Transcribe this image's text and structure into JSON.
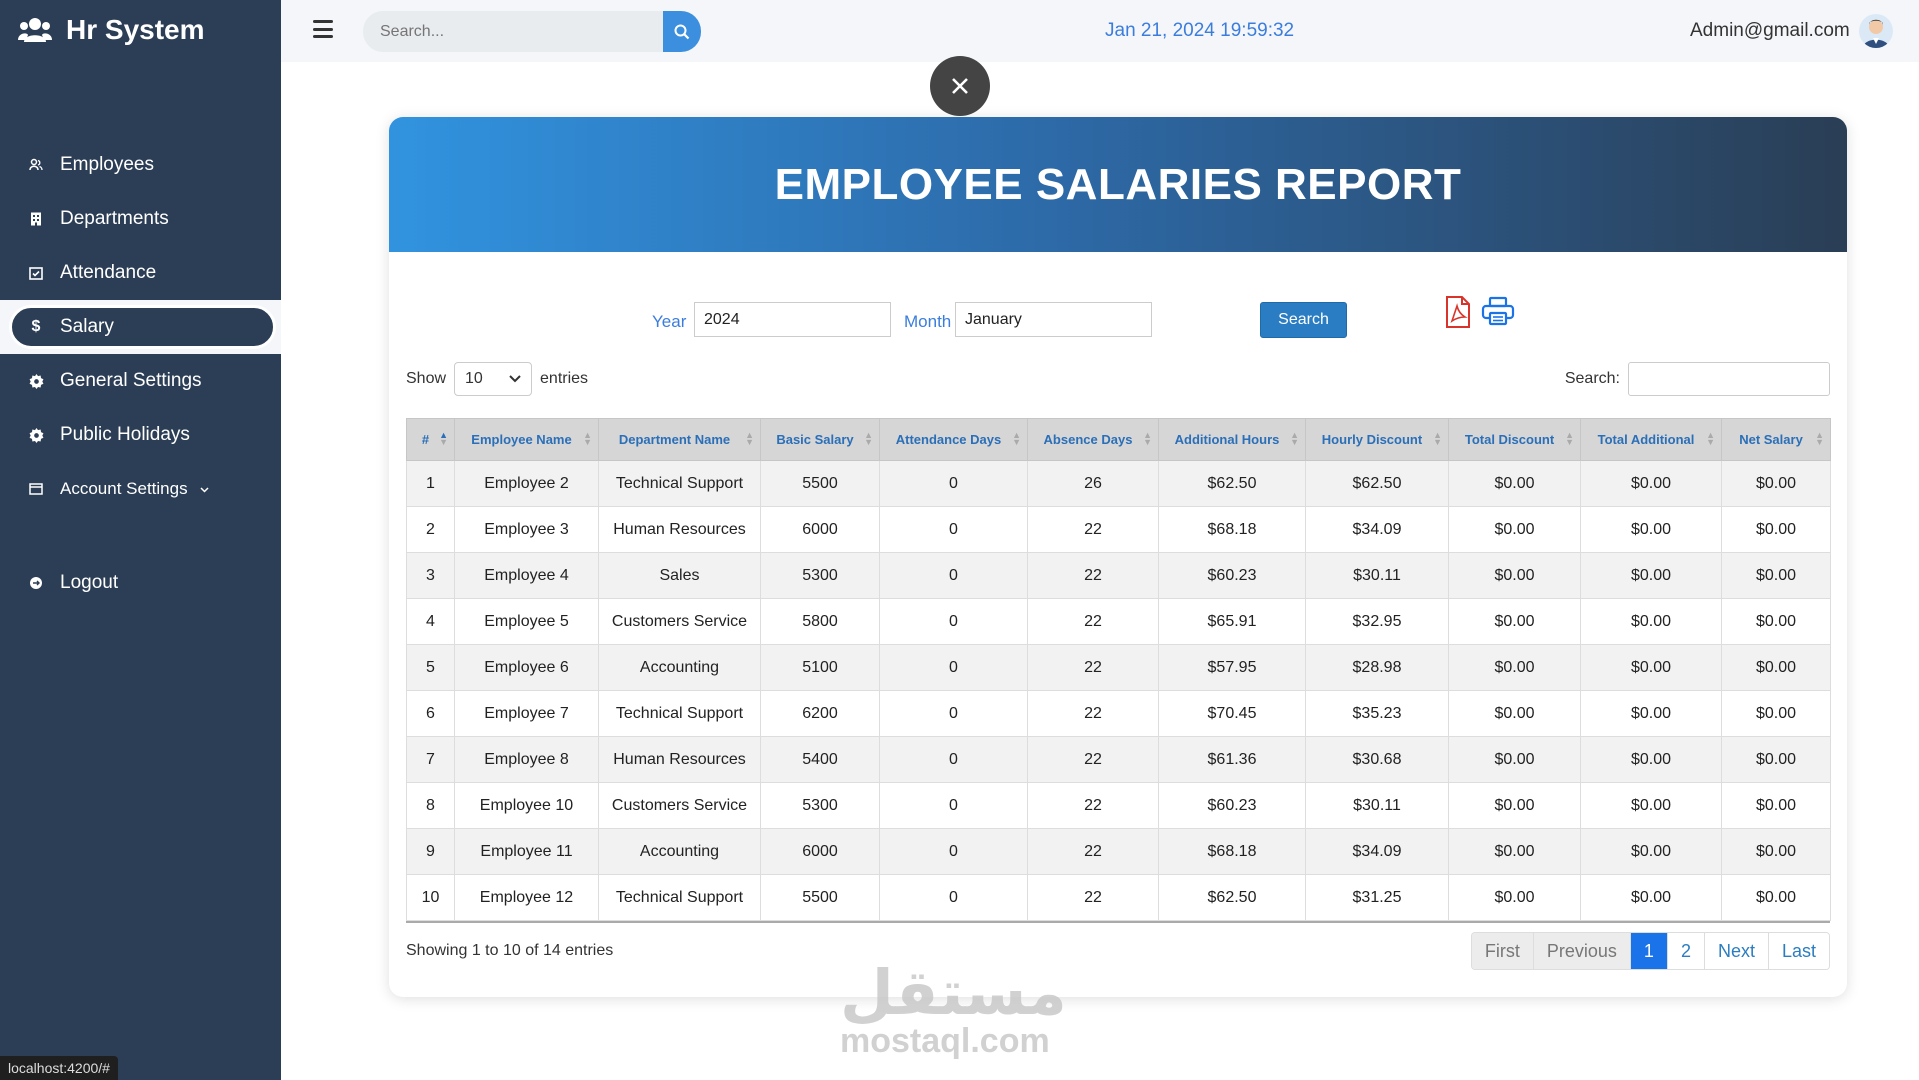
{
  "app": {
    "title": "Hr System"
  },
  "sidebar": {
    "items": [
      {
        "label": "Employees",
        "icon": "users-icon"
      },
      {
        "label": "Departments",
        "icon": "building-icon"
      },
      {
        "label": "Attendance",
        "icon": "calendar-check-icon"
      },
      {
        "label": "Salary",
        "icon": "dollar-icon",
        "active": true
      },
      {
        "label": "General Settings",
        "icon": "gear-icon"
      },
      {
        "label": "Public Holidays",
        "icon": "gear-icon"
      },
      {
        "label": "Account Settings",
        "icon": "id-card-icon"
      },
      {
        "label": "Logout",
        "icon": "logout-icon"
      }
    ]
  },
  "status_url": "localhost:4200/#",
  "topbar": {
    "search_placeholder": "Search...",
    "datetime": "Jan 21, 2024 19:59:32",
    "user_email": "Admin@gmail.com"
  },
  "report": {
    "title": "EMPLOYEE SALARIES REPORT",
    "year_label": "Year",
    "year_value": "2024",
    "month_label": "Month",
    "month_value": "January",
    "search_button": "Search"
  },
  "table_controls": {
    "show_label": "Show",
    "page_size": "10",
    "entries_label": "entries",
    "search_label": "Search:"
  },
  "table": {
    "columns": [
      "#",
      "Employee Name",
      "Department Name",
      "Basic Salary",
      "Attendance Days",
      "Absence Days",
      "Additional Hours",
      "Hourly Discount",
      "Total Discount",
      "Total Additional",
      "Net Salary"
    ],
    "rows": [
      [
        "1",
        "Employee 2",
        "Technical Support",
        "5500",
        "0",
        "26",
        "$62.50",
        "$62.50",
        "$0.00",
        "$0.00",
        "$0.00"
      ],
      [
        "2",
        "Employee 3",
        "Human Resources",
        "6000",
        "0",
        "22",
        "$68.18",
        "$34.09",
        "$0.00",
        "$0.00",
        "$0.00"
      ],
      [
        "3",
        "Employee 4",
        "Sales",
        "5300",
        "0",
        "22",
        "$60.23",
        "$30.11",
        "$0.00",
        "$0.00",
        "$0.00"
      ],
      [
        "4",
        "Employee 5",
        "Customers Service",
        "5800",
        "0",
        "22",
        "$65.91",
        "$32.95",
        "$0.00",
        "$0.00",
        "$0.00"
      ],
      [
        "5",
        "Employee 6",
        "Accounting",
        "5100",
        "0",
        "22",
        "$57.95",
        "$28.98",
        "$0.00",
        "$0.00",
        "$0.00"
      ],
      [
        "6",
        "Employee 7",
        "Technical Support",
        "6200",
        "0",
        "22",
        "$70.45",
        "$35.23",
        "$0.00",
        "$0.00",
        "$0.00"
      ],
      [
        "7",
        "Employee 8",
        "Human Resources",
        "5400",
        "0",
        "22",
        "$61.36",
        "$30.68",
        "$0.00",
        "$0.00",
        "$0.00"
      ],
      [
        "8",
        "Employee 10",
        "Customers Service",
        "5300",
        "0",
        "22",
        "$60.23",
        "$30.11",
        "$0.00",
        "$0.00",
        "$0.00"
      ],
      [
        "9",
        "Employee 11",
        "Accounting",
        "6000",
        "0",
        "22",
        "$68.18",
        "$34.09",
        "$0.00",
        "$0.00",
        "$0.00"
      ],
      [
        "10",
        "Employee 12",
        "Technical Support",
        "5500",
        "0",
        "22",
        "$62.50",
        "$31.25",
        "$0.00",
        "$0.00",
        "$0.00"
      ]
    ]
  },
  "footer": {
    "showing": "Showing 1 to 10 of 14 entries",
    "pagination": [
      "First",
      "Previous",
      "1",
      "2",
      "Next",
      "Last"
    ]
  },
  "watermark": {
    "arabic": "مستقل",
    "latin": "mostaql.com"
  }
}
